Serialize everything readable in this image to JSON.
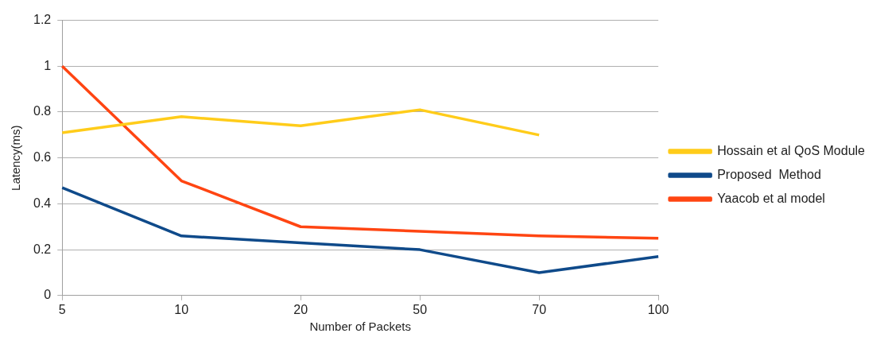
{
  "chart_data": {
    "type": "line",
    "xlabel": "Number of Packets",
    "ylabel": "Latency(ms)",
    "categories": [
      "5",
      "10",
      "20",
      "50",
      "70",
      "100"
    ],
    "series": [
      {
        "name": "Hossain et al QoS Module",
        "color": "#ffcc1a",
        "values": [
          0.71,
          0.78,
          0.74,
          0.81,
          0.7,
          null
        ]
      },
      {
        "name": "Proposed  Method",
        "color": "#0f4a8a",
        "values": [
          0.47,
          0.26,
          0.23,
          0.2,
          0.1,
          0.17
        ]
      },
      {
        "name": "Yaacob et al model",
        "color": "#ff4512",
        "values": [
          1,
          0.5,
          0.3,
          0.28,
          0.26,
          0.25
        ]
      }
    ],
    "ylim": [
      0,
      1.2
    ],
    "yticks": [
      0,
      0.2,
      0.4,
      0.6,
      0.8,
      1,
      1.2
    ],
    "grid": "y",
    "legend": "right",
    "marker": "none",
    "line_style": "solid"
  }
}
